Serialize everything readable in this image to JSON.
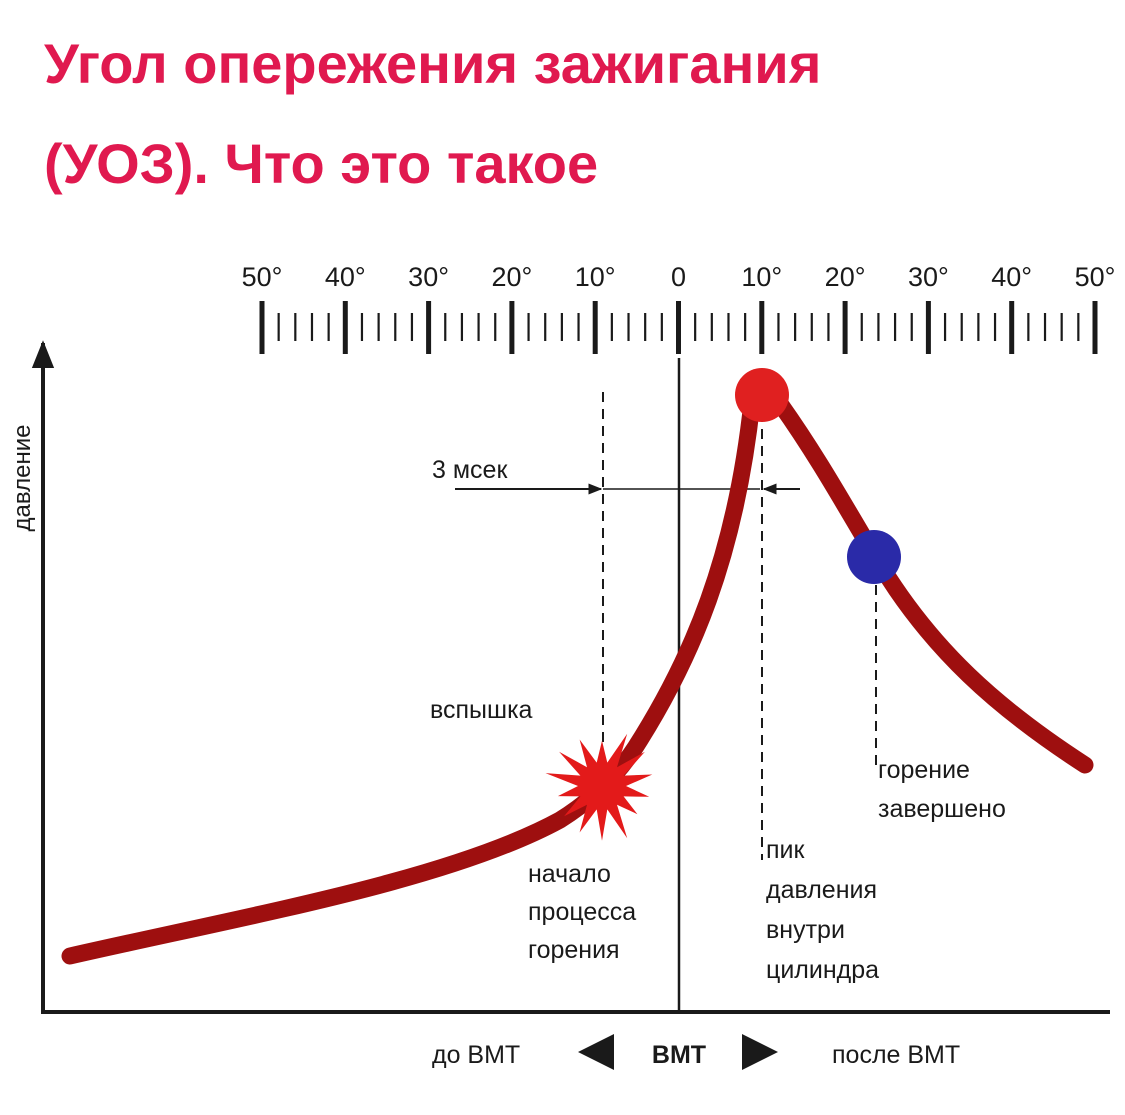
{
  "title": {
    "line1": "Угол опережения зажигания",
    "line2": "(УОЗ). Что это такое"
  },
  "scale": {
    "ticks": [
      "50°",
      "40°",
      "30°",
      "20°",
      "10°",
      "0",
      "10°",
      "20°",
      "30°",
      "40°",
      "50°"
    ]
  },
  "axis": {
    "y_label": "давление",
    "x_before": "до ВМТ",
    "x_center": "ВМТ",
    "x_after": "после ВМТ"
  },
  "annotations": {
    "interval": "3 мсек",
    "flash": "вспышка",
    "start": [
      "начало",
      "процесса",
      "горения"
    ],
    "peak": [
      "пик",
      "давления",
      "внутри",
      "цилиндра"
    ],
    "end": [
      "горение",
      "завершено"
    ]
  },
  "colors": {
    "title": "#e0194f",
    "curve": "#9e0f0f",
    "peak_marker": "#e02020",
    "end_marker": "#2a2aa8",
    "flash": "#e31a1a"
  }
}
